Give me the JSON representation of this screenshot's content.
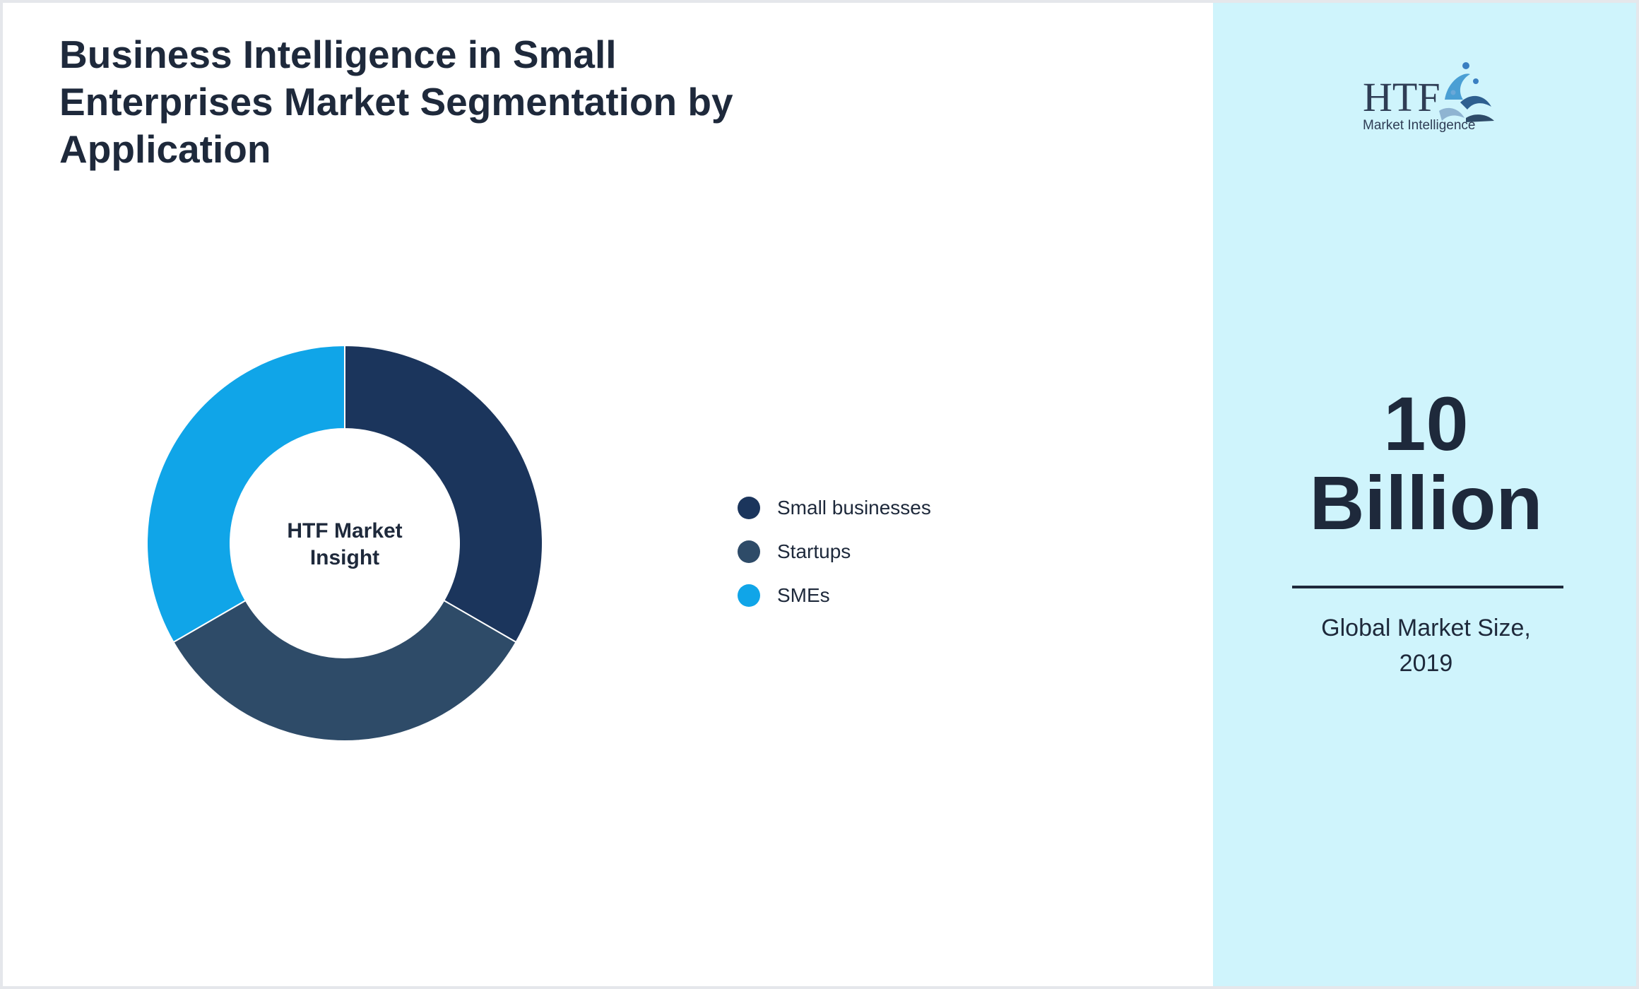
{
  "title": "Business Intelligence in Small Enterprises Market Segmentation by Application",
  "chart_data": {
    "type": "pie",
    "title": "Business Intelligence in Small Enterprises Market Segmentation by Application",
    "center_label": [
      "HTF Market",
      "Insight"
    ],
    "categories": [
      "Small businesses",
      "Startups",
      "SMEs"
    ],
    "values": [
      33.3,
      33.3,
      33.3
    ],
    "colors": [
      "#1b355c",
      "#2e4b68",
      "#10a5e8"
    ],
    "legend_position": "right"
  },
  "legend": {
    "items": [
      {
        "label": "Small businesses",
        "color": "#1b355c"
      },
      {
        "label": "Startups",
        "color": "#2e4b68"
      },
      {
        "label": "SMEs",
        "color": "#10a5e8"
      }
    ]
  },
  "metric": {
    "value_line1": "10",
    "value_line2": "Billion",
    "label_line1": "Global Market Size,",
    "label_line2": "2019"
  },
  "logo": {
    "text": "HTF",
    "subtitle": "Market Intelligence"
  },
  "colors": {
    "text": "#1e293b",
    "right_panel_bg": "#cff4fc",
    "frame_border": "#e5e7eb"
  }
}
